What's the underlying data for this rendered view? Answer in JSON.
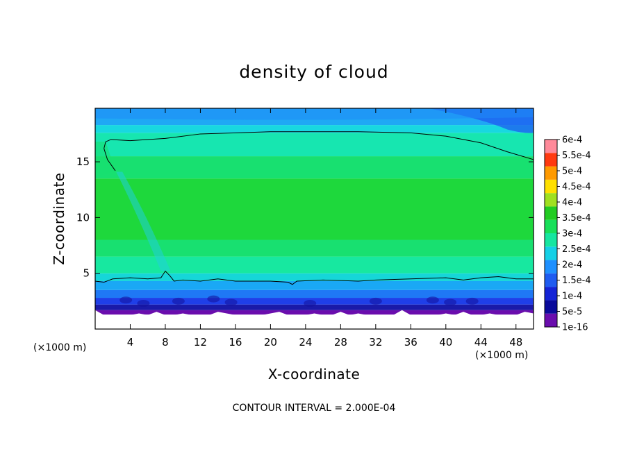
{
  "chart_data": {
    "type": "heatmap",
    "title": "density of cloud",
    "xlabel": "X-coordinate",
    "ylabel": "Z-coordinate",
    "x_unit": "(×1000 m)",
    "z_unit": "(×1000 m)",
    "xlim": [
      0,
      50
    ],
    "ylim": [
      0,
      19.8
    ],
    "x_ticks": [
      4,
      8,
      12,
      16,
      20,
      24,
      28,
      32,
      36,
      40,
      44,
      48
    ],
    "y_ticks": [
      5,
      10,
      15
    ],
    "colorbar": {
      "levels": [
        "1e-16",
        "5e-5",
        "1e-4",
        "1.5e-4",
        "2e-4",
        "2.5e-4",
        "3e-4",
        "3.5e-4",
        "4e-4",
        "4.5e-4",
        "5e-4",
        "5.5e-4",
        "6e-4"
      ],
      "colors": [
        "#6a0dad",
        "#0a0a9a",
        "#1424d6",
        "#1f5cf0",
        "#1e90ff",
        "#14d0e6",
        "#16e6a0",
        "#18e05a",
        "#22cc22",
        "#a0e020",
        "#ffe000",
        "#ff9a00",
        "#ff3a10",
        "#ff8a9a"
      ]
    },
    "bands": [
      {
        "z": [
          0,
          1.3
        ],
        "color": "#ffffff"
      },
      {
        "z": [
          1.3,
          1.7
        ],
        "color": "#6a0dad"
      },
      {
        "z": [
          1.7,
          2.2
        ],
        "color": "#1a1aa8"
      },
      {
        "z": [
          2.2,
          2.8
        ],
        "color": "#1f3fe8"
      },
      {
        "z": [
          2.8,
          3.5
        ],
        "color": "#1f78f5"
      },
      {
        "z": [
          3.5,
          4.3
        ],
        "color": "#1aa8f5"
      },
      {
        "z": [
          4.3,
          5.0
        ],
        "color": "#16d6d8"
      },
      {
        "z": [
          5.0,
          6.5
        ],
        "color": "#17e8a0"
      },
      {
        "z": [
          6.5,
          8.0
        ],
        "color": "#18e070"
      },
      {
        "z": [
          8.0,
          13.5
        ],
        "color": "#1ed83c"
      },
      {
        "z": [
          13.5,
          15.5
        ],
        "color": "#18e070"
      },
      {
        "z": [
          15.5,
          17.6
        ],
        "color": "#17e6b0"
      },
      {
        "z": [
          17.6,
          18.3
        ],
        "color": "#18d8e0"
      },
      {
        "z": [
          18.3,
          19.8
        ],
        "color": "#1fa8f5"
      }
    ],
    "contour_upper": [
      [
        1.0,
        16.2
      ],
      [
        1.2,
        16.8
      ],
      [
        1.8,
        17.0
      ],
      [
        4,
        16.9
      ],
      [
        8,
        17.1
      ],
      [
        12,
        17.5
      ],
      [
        20,
        17.7
      ],
      [
        30,
        17.7
      ],
      [
        36,
        17.6
      ],
      [
        40,
        17.3
      ],
      [
        44,
        16.7
      ],
      [
        47,
        15.9
      ],
      [
        50,
        15.2
      ]
    ],
    "contour_upper_left": [
      [
        1.0,
        16.2
      ],
      [
        1.4,
        15.2
      ],
      [
        2.3,
        14.2
      ]
    ],
    "contour_lower": [
      [
        0,
        4.3
      ],
      [
        1,
        4.2
      ],
      [
        2,
        4.5
      ],
      [
        4,
        4.6
      ],
      [
        6,
        4.5
      ],
      [
        7.5,
        4.6
      ],
      [
        8,
        5.2
      ],
      [
        8.5,
        4.8
      ],
      [
        9,
        4.3
      ],
      [
        10,
        4.4
      ],
      [
        12,
        4.3
      ],
      [
        14,
        4.5
      ],
      [
        16,
        4.3
      ],
      [
        18,
        4.3
      ],
      [
        20,
        4.3
      ],
      [
        22,
        4.2
      ],
      [
        22.5,
        4.0
      ],
      [
        23,
        4.3
      ],
      [
        26,
        4.4
      ],
      [
        30,
        4.3
      ],
      [
        32,
        4.4
      ],
      [
        36,
        4.5
      ],
      [
        40,
        4.6
      ],
      [
        42,
        4.4
      ],
      [
        44,
        4.6
      ],
      [
        46,
        4.7
      ],
      [
        48,
        4.5
      ],
      [
        50,
        4.5
      ]
    ],
    "contour_interval_note": "CONTOUR INTERVAL = 2.000E-04"
  }
}
